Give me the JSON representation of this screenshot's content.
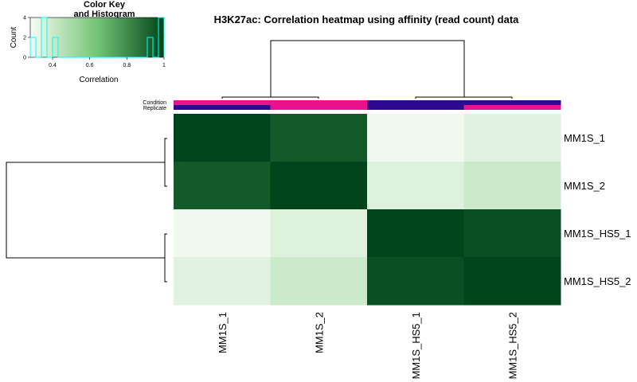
{
  "chart_data": {
    "type": "heatmap",
    "title": "H3K27ac: Correlation heatmap using affinity (read count) data",
    "rows": [
      "MM1S_1",
      "MM1S_2",
      "MM1S_HS5_1",
      "MM1S_HS5_2"
    ],
    "cols": [
      "MM1S_1",
      "MM1S_2",
      "MM1S_HS5_1",
      "MM1S_HS5_2"
    ],
    "values": [
      [
        1.0,
        0.94,
        0.3,
        0.34
      ],
      [
        0.94,
        1.0,
        0.35,
        0.4
      ],
      [
        0.3,
        0.35,
        1.0,
        0.97
      ],
      [
        0.34,
        0.4,
        0.97,
        1.0
      ]
    ],
    "color_low": "#f7fcf5",
    "color_mid": "#74c476",
    "color_high": "#00441b",
    "annotation_labels": [
      "Condition",
      "Replicate"
    ],
    "annotation_colors": {
      "condition": [
        "#e8138c",
        "#e8138c",
        "#2d0a8f",
        "#2d0a8f"
      ],
      "replicate": [
        "#2d0a8f",
        "#e8138c",
        "#2d0a8f",
        "#e8138c"
      ]
    },
    "color_key": {
      "title_line1": "Color Key",
      "title_line2": "and Histogram",
      "xlabel": "Correlation",
      "ylabel": "Count",
      "xticks": [
        "0.4",
        "0.6",
        "0.8",
        "1"
      ],
      "yticks": [
        "0",
        "2",
        "4"
      ],
      "xlim": [
        0.28,
        1.0
      ],
      "ylim": [
        0,
        4
      ],
      "histogram_color": "#00ffff"
    }
  }
}
